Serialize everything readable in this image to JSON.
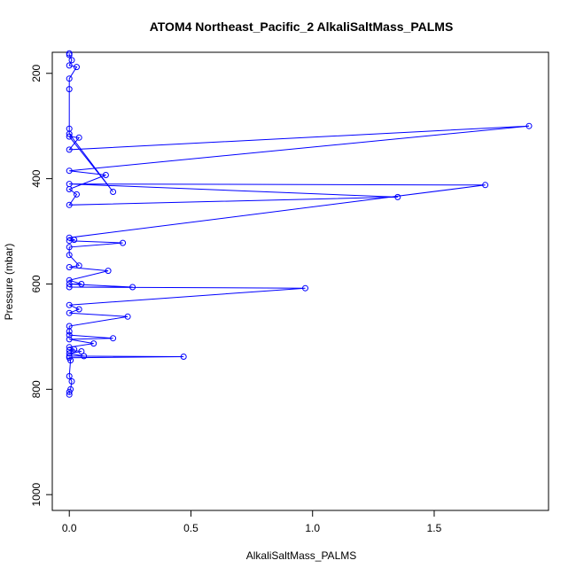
{
  "chart_data": {
    "type": "line",
    "title": "ATOM4 Northeast_Pacific_2 AlkaliSaltMass_PALMS",
    "xlabel": "AlkaliSaltMass_PALMS",
    "ylabel": "Pressure (mbar)",
    "xlim": [
      -0.07,
      1.97
    ],
    "ylim": [
      1030,
      160
    ],
    "y_reversed": true,
    "grid": false,
    "x_ticks": [
      0.0,
      0.5,
      1.0,
      1.5
    ],
    "x_tick_labels": [
      "0.0",
      "0.5",
      "1.0",
      "1.5"
    ],
    "y_ticks": [
      200,
      400,
      600,
      800,
      1000
    ],
    "y_tick_labels": [
      "200",
      "400",
      "600",
      "800",
      "1000"
    ],
    "series": [
      {
        "color": "#0000ff",
        "points": [
          {
            "x": 0.0,
            "y": 810
          },
          {
            "x": 0.0,
            "y": 805
          },
          {
            "x": 0.005,
            "y": 800
          },
          {
            "x": 0.01,
            "y": 785
          },
          {
            "x": 0.0,
            "y": 775
          },
          {
            "x": 0.005,
            "y": 745
          },
          {
            "x": 0.0,
            "y": 740
          },
          {
            "x": 0.47,
            "y": 738
          },
          {
            "x": 0.0,
            "y": 737
          },
          {
            "x": 0.06,
            "y": 737
          },
          {
            "x": 0.0,
            "y": 732
          },
          {
            "x": 0.05,
            "y": 728
          },
          {
            "x": 0.0,
            "y": 726
          },
          {
            "x": 0.02,
            "y": 724
          },
          {
            "x": 0.0,
            "y": 720
          },
          {
            "x": 0.1,
            "y": 713
          },
          {
            "x": 0.0,
            "y": 705
          },
          {
            "x": 0.18,
            "y": 703
          },
          {
            "x": 0.0,
            "y": 697
          },
          {
            "x": 0.0,
            "y": 690
          },
          {
            "x": 0.0,
            "y": 680
          },
          {
            "x": 0.24,
            "y": 662
          },
          {
            "x": 0.0,
            "y": 655
          },
          {
            "x": 0.04,
            "y": 648
          },
          {
            "x": 0.0,
            "y": 640
          },
          {
            "x": 0.97,
            "y": 608
          },
          {
            "x": 0.0,
            "y": 606
          },
          {
            "x": 0.26,
            "y": 606
          },
          {
            "x": 0.0,
            "y": 600
          },
          {
            "x": 0.05,
            "y": 600
          },
          {
            "x": 0.0,
            "y": 593
          },
          {
            "x": 0.16,
            "y": 575
          },
          {
            "x": 0.0,
            "y": 568
          },
          {
            "x": 0.04,
            "y": 565
          },
          {
            "x": 0.0,
            "y": 545
          },
          {
            "x": 0.0,
            "y": 530
          },
          {
            "x": 0.22,
            "y": 522
          },
          {
            "x": 0.0,
            "y": 518
          },
          {
            "x": 0.02,
            "y": 516
          },
          {
            "x": 0.0,
            "y": 512
          },
          {
            "x": 1.71,
            "y": 412
          },
          {
            "x": 0.0,
            "y": 410
          },
          {
            "x": 1.35,
            "y": 435
          },
          {
            "x": 0.0,
            "y": 450
          },
          {
            "x": 0.03,
            "y": 430
          },
          {
            "x": 0.0,
            "y": 420
          },
          {
            "x": 0.15,
            "y": 393
          },
          {
            "x": 0.0,
            "y": 385
          },
          {
            "x": 1.89,
            "y": 300
          },
          {
            "x": 0.0,
            "y": 345
          },
          {
            "x": 0.04,
            "y": 322
          },
          {
            "x": 0.0,
            "y": 320
          },
          {
            "x": 0.18,
            "y": 425
          },
          {
            "x": 0.0,
            "y": 315
          },
          {
            "x": 0.0,
            "y": 305
          },
          {
            "x": 0.0,
            "y": 230
          },
          {
            "x": 0.0,
            "y": 210
          },
          {
            "x": 0.03,
            "y": 188
          },
          {
            "x": 0.0,
            "y": 185
          },
          {
            "x": 0.01,
            "y": 175
          },
          {
            "x": 0.0,
            "y": 165
          },
          {
            "x": 0.0,
            "y": 162
          }
        ]
      }
    ]
  }
}
